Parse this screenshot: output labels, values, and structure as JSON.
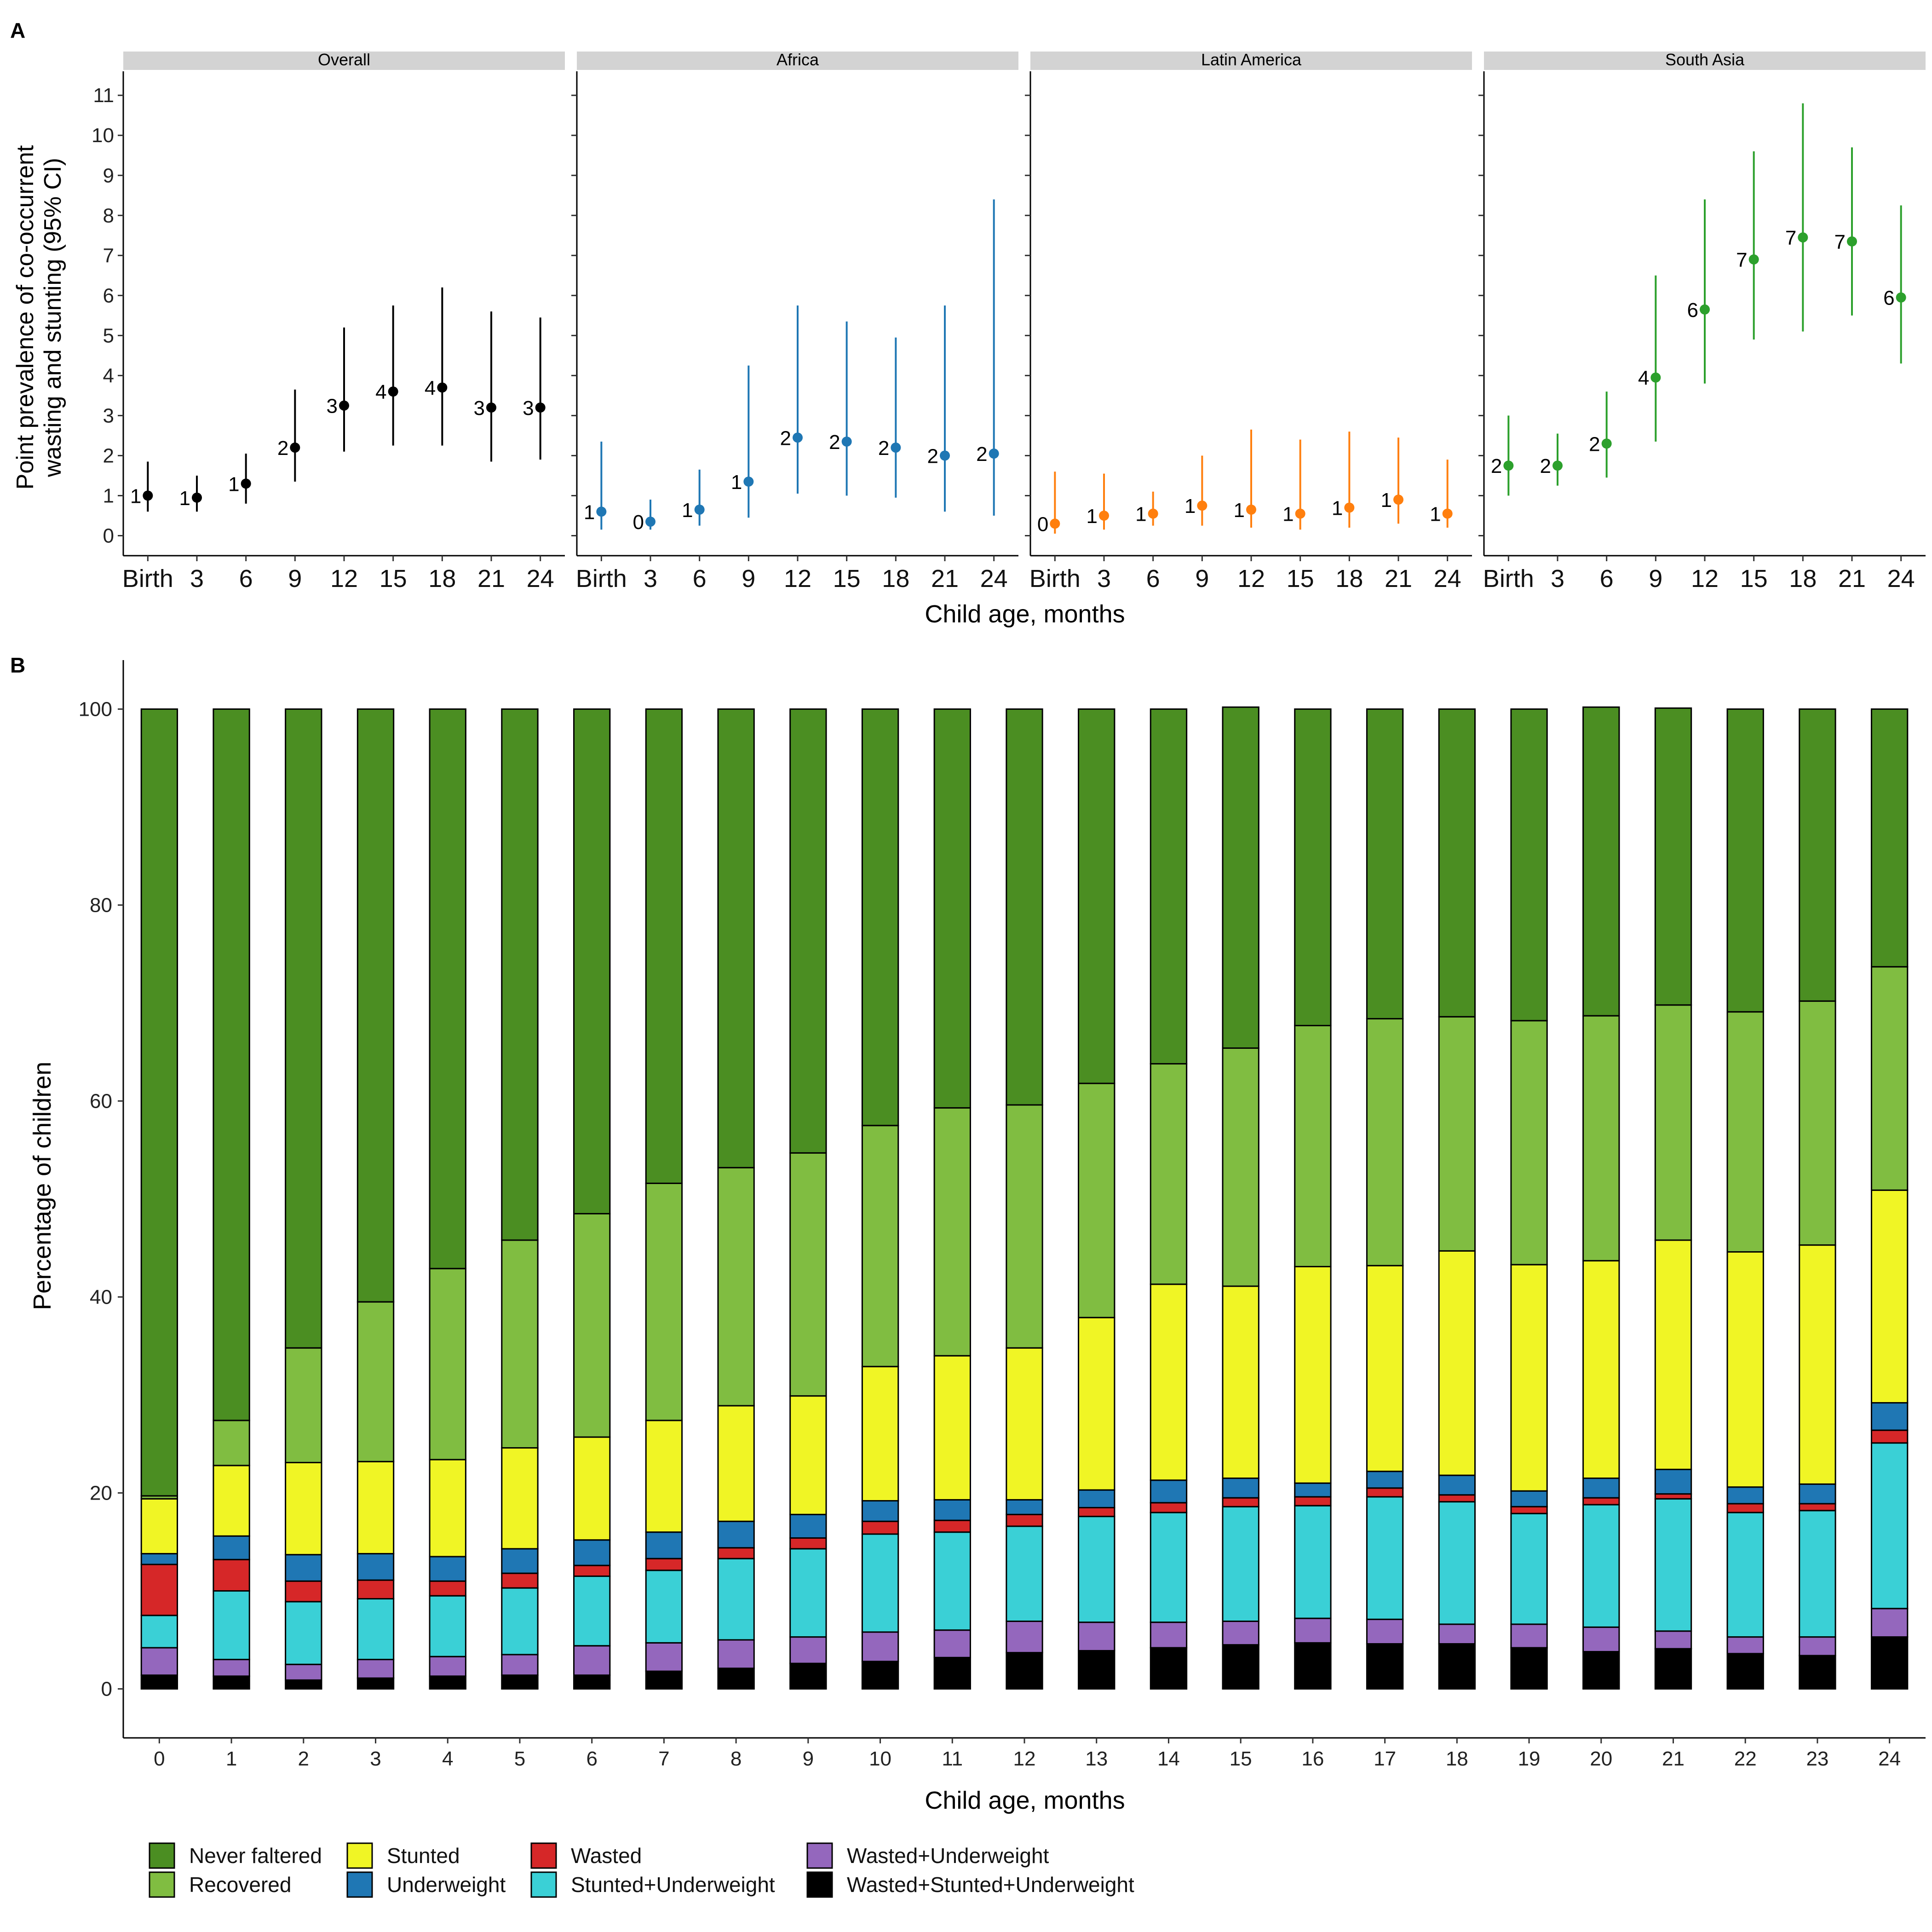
{
  "figure": {
    "panel_a_label": "A",
    "panel_b_label": "B"
  },
  "chart_data": [
    {
      "type": "scatter",
      "panel": "A",
      "ylabel_line1": "Point prevalence of co-occurrent",
      "ylabel_line2": "wasting and stunting (95% CI)",
      "xlabel": "Child age, months",
      "categories": [
        "Birth",
        "3",
        "6",
        "9",
        "12",
        "15",
        "18",
        "21",
        "24"
      ],
      "ylim": [
        -0.5,
        11.6
      ],
      "yticks": [
        0,
        1,
        2,
        3,
        4,
        5,
        6,
        7,
        8,
        9,
        10,
        11
      ],
      "panels": [
        {
          "name": "Overall",
          "color": "#000000",
          "estimates": [
            1.0,
            0.95,
            1.3,
            2.2,
            3.25,
            3.6,
            3.7,
            3.2,
            3.2
          ],
          "lower": [
            0.6,
            0.6,
            0.8,
            1.35,
            2.1,
            2.25,
            2.25,
            1.85,
            1.9
          ],
          "upper": [
            1.85,
            1.5,
            2.05,
            3.65,
            5.2,
            5.75,
            6.2,
            5.6,
            5.45
          ],
          "labels": [
            "1",
            "1",
            "1",
            "2",
            "3",
            "4",
            "4",
            "3",
            "3"
          ]
        },
        {
          "name": "Africa",
          "color": "#1f77b4",
          "estimates": [
            0.6,
            0.35,
            0.65,
            1.35,
            2.45,
            2.35,
            2.2,
            2.0,
            2.05
          ],
          "lower": [
            0.15,
            0.15,
            0.25,
            0.45,
            1.05,
            1.0,
            0.95,
            0.6,
            0.5
          ],
          "upper": [
            2.35,
            0.9,
            1.65,
            4.25,
            5.75,
            5.35,
            4.95,
            5.75,
            8.4
          ],
          "labels": [
            "1",
            "0",
            "1",
            "1",
            "2",
            "2",
            "2",
            "2",
            "2"
          ]
        },
        {
          "name": "Latin America",
          "color": "#ff7f0e",
          "estimates": [
            0.3,
            0.5,
            0.55,
            0.75,
            0.65,
            0.55,
            0.7,
            0.9,
            0.55
          ],
          "lower": [
            0.05,
            0.15,
            0.25,
            0.25,
            0.2,
            0.15,
            0.2,
            0.3,
            0.2
          ],
          "upper": [
            1.6,
            1.55,
            1.1,
            2.0,
            2.65,
            2.4,
            2.6,
            2.45,
            1.9
          ],
          "labels": [
            "0",
            "1",
            "1",
            "1",
            "1",
            "1",
            "1",
            "1",
            "1"
          ]
        },
        {
          "name": "South Asia",
          "color": "#2ca02c",
          "estimates": [
            1.75,
            1.75,
            2.3,
            3.95,
            5.65,
            6.9,
            7.45,
            7.35,
            5.95
          ],
          "lower": [
            1.0,
            1.25,
            1.45,
            2.35,
            3.8,
            4.9,
            5.1,
            5.5,
            4.3
          ],
          "upper": [
            3.0,
            2.55,
            3.6,
            6.5,
            8.4,
            9.6,
            10.8,
            9.7,
            8.25
          ],
          "labels": [
            "2",
            "2",
            "2",
            "4",
            "6",
            "7",
            "7",
            "7",
            "6"
          ]
        }
      ]
    },
    {
      "type": "bar",
      "stacked": true,
      "panel": "B",
      "ylabel": "Percentage of children",
      "xlabel": "Child age, months",
      "categories": [
        "0",
        "1",
        "2",
        "3",
        "4",
        "5",
        "6",
        "7",
        "8",
        "9",
        "10",
        "11",
        "12",
        "13",
        "14",
        "15",
        "16",
        "17",
        "18",
        "19",
        "20",
        "21",
        "22",
        "23",
        "24"
      ],
      "ylim": [
        -5,
        105
      ],
      "yticks": [
        0,
        20,
        40,
        60,
        80,
        100
      ],
      "legend_position": "bottom",
      "series": [
        {
          "name": "Wasted+Stunted+Underweight",
          "color": "#000000",
          "values": [
            1.4,
            1.3,
            0.9,
            1.1,
            1.3,
            1.4,
            1.4,
            1.8,
            2.1,
            2.6,
            2.8,
            3.2,
            3.7,
            3.9,
            4.2,
            4.5,
            4.7,
            4.6,
            4.6,
            4.2,
            3.8,
            4.1,
            3.6,
            3.4,
            5.3
          ]
        },
        {
          "name": "Wasted+Underweight",
          "color": "#9467bd",
          "values": [
            2.8,
            1.7,
            1.6,
            1.9,
            2.0,
            2.1,
            3.0,
            2.9,
            2.9,
            2.7,
            3.0,
            2.8,
            3.2,
            2.9,
            2.6,
            2.4,
            2.5,
            2.5,
            2.0,
            2.4,
            2.5,
            1.8,
            1.7,
            1.9,
            2.9
          ]
        },
        {
          "name": "Stunted+Underweight",
          "color": "#3ad0d6",
          "values": [
            3.3,
            7.0,
            6.4,
            6.2,
            6.2,
            6.8,
            7.1,
            7.4,
            8.3,
            9.0,
            10.0,
            10.0,
            9.7,
            10.8,
            11.2,
            11.7,
            11.5,
            12.5,
            12.5,
            11.3,
            12.5,
            13.5,
            12.7,
            12.9,
            16.9
          ]
        },
        {
          "name": "Wasted",
          "color": "#d62728",
          "values": [
            5.2,
            3.2,
            2.1,
            1.9,
            1.5,
            1.5,
            1.1,
            1.2,
            1.1,
            1.1,
            1.3,
            1.2,
            1.2,
            0.9,
            1.0,
            0.9,
            0.9,
            0.9,
            0.7,
            0.7,
            0.7,
            0.5,
            0.9,
            0.7,
            1.3
          ]
        },
        {
          "name": "Underweight",
          "color": "#1f77b4",
          "values": [
            1.1,
            2.4,
            2.7,
            2.7,
            2.5,
            2.5,
            2.6,
            2.7,
            2.7,
            2.4,
            2.1,
            2.1,
            1.5,
            1.8,
            2.3,
            2.0,
            1.4,
            1.7,
            2.0,
            1.6,
            2.0,
            2.5,
            1.7,
            2.0,
            2.8
          ]
        },
        {
          "name": "Stunted",
          "color": "#f0f525",
          "values": [
            5.6,
            7.2,
            9.4,
            9.4,
            9.9,
            10.3,
            10.5,
            11.4,
            11.8,
            12.1,
            13.7,
            14.7,
            15.5,
            17.6,
            20.0,
            19.6,
            22.1,
            21.0,
            22.9,
            23.1,
            22.2,
            23.4,
            24.0,
            24.4,
            21.7
          ]
        },
        {
          "name": "Recovered",
          "color": "#80bd41",
          "values": [
            0.3,
            4.6,
            11.7,
            16.3,
            19.5,
            21.2,
            22.8,
            24.2,
            24.3,
            24.8,
            24.6,
            25.3,
            24.8,
            23.9,
            22.5,
            24.3,
            24.6,
            25.2,
            23.9,
            24.9,
            25.0,
            24.0,
            24.5,
            24.9,
            22.8
          ]
        },
        {
          "name": "Never faltered",
          "color": "#4b8e22",
          "values": [
            80.3,
            72.6,
            65.2,
            60.5,
            57.1,
            54.2,
            51.5,
            48.4,
            46.8,
            45.3,
            42.5,
            40.7,
            40.4,
            38.2,
            36.2,
            34.8,
            32.3,
            31.6,
            31.4,
            31.8,
            31.5,
            30.3,
            30.9,
            29.8,
            26.3
          ]
        }
      ],
      "legend_order": [
        "Never faltered",
        "Recovered",
        "Stunted",
        "Underweight",
        "Wasted",
        "Stunted+Underweight",
        "Wasted+Underweight",
        "Wasted+Stunted+Underweight"
      ]
    }
  ]
}
